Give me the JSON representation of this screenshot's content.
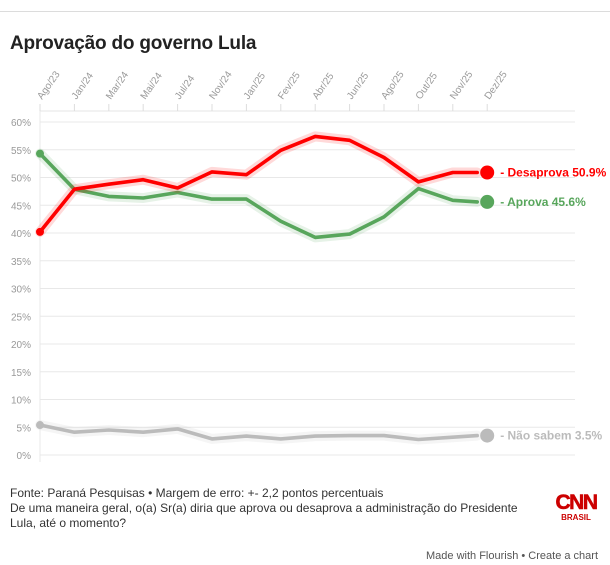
{
  "title": "Aprovação do governo Lula",
  "chart_data": {
    "type": "line",
    "title": "Aprovação do governo Lula",
    "xlabel": "",
    "ylabel": "",
    "x": [
      "Ago/23",
      "Jan/24",
      "Mar/24",
      "Mai/24",
      "Jul/24",
      "Nov/24",
      "Jan/25",
      "Fev/25",
      "Abr/25",
      "Jun/25",
      "Ago/25",
      "Out/25",
      "Nov/25",
      "Dez/25"
    ],
    "y_ticks": [
      "0%",
      "5%",
      "10%",
      "15%",
      "20%",
      "25%",
      "30%",
      "35%",
      "40%",
      "45%",
      "50%",
      "55%",
      "60%"
    ],
    "ylim": [
      0,
      60
    ],
    "x_axis_position": "top",
    "grid": true,
    "series": [
      {
        "name": "Desaprova",
        "label": "- Desaprova 50.9%",
        "color": "#ff0000",
        "values": [
          40.2,
          47.9,
          48.8,
          49.6,
          48.1,
          51.0,
          50.5,
          54.9,
          57.4,
          56.7,
          53.6,
          49.2,
          50.9,
          50.9
        ]
      },
      {
        "name": "Aprova",
        "label": "- Aprova 45.6%",
        "color": "#58a65c",
        "values": [
          54.3,
          47.9,
          46.6,
          46.3,
          47.3,
          46.1,
          46.1,
          42.1,
          39.2,
          39.8,
          42.9,
          48.0,
          45.9,
          45.6
        ]
      },
      {
        "name": "Não sabem",
        "label": "- Não sabem 3.5%",
        "color": "#bbbbbb",
        "values": [
          5.4,
          4.1,
          4.5,
          4.1,
          4.7,
          2.9,
          3.4,
          2.9,
          3.4,
          3.5,
          3.5,
          2.8,
          3.2,
          3.5
        ]
      }
    ],
    "legend": "inline-end-labels"
  },
  "footer": {
    "source": "Fonte: Paraná Pesquisas • Margem de erro: +- 2,2 pontos percentuais",
    "question": "De uma maneira geral, o(a) Sr(a) diria que aprova ou desaprova a administração do Presidente Lula, até o momento?"
  },
  "logo": {
    "brand": "CNN",
    "sub": "BRASIL",
    "color": "#cc0000"
  },
  "credit": {
    "made_with": "Made with Flourish",
    "separator": " • ",
    "create": "Create a chart"
  }
}
